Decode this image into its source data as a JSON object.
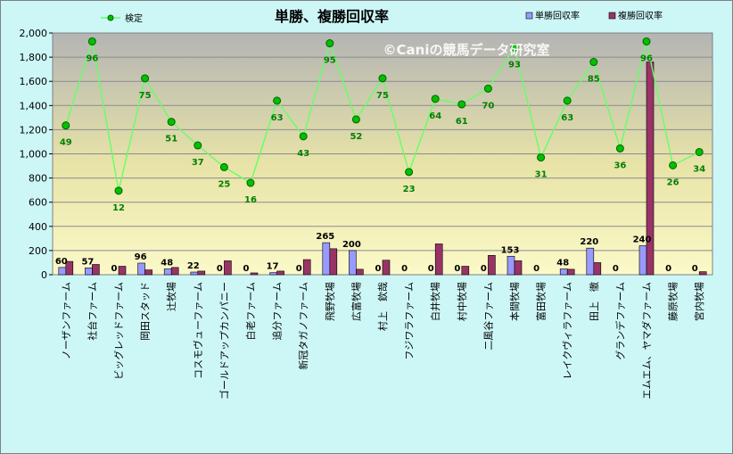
{
  "chart_data": {
    "type": "bar",
    "title": "単勝、複勝回収率",
    "watermark": "©Caniの競馬データ研究室",
    "ylim": [
      0,
      2000
    ],
    "yticks": [
      "0",
      "200",
      "400",
      "600",
      "800",
      "1,000",
      "1,200",
      "1,400",
      "1,600",
      "1,800",
      "2,000"
    ],
    "grid": true,
    "legend": "top",
    "categories": [
      "ノーザンファーム",
      "社台ファーム",
      "ビッグレッドファーム",
      "岡田スタッド",
      "辻牧場",
      "コスモヴューファーム",
      "ゴールドアップカンパニー",
      "白老ファーム",
      "追分ファーム",
      "新冠タガノファーム",
      "飛野牧場",
      "広富牧場",
      "村上　欽哉",
      "フジワラファーム",
      "白井牧場",
      "村中牧場",
      "二風谷ファーム",
      "本間牧場",
      "富田牧場",
      "レイクヴィラファーム",
      "田上　徹",
      "グランデファーム",
      "エムエム、ヤマダファーム",
      "藤原牧場",
      "宮内牧場"
    ],
    "series": [
      {
        "name": "単勝回収率",
        "kind": "bar",
        "color": "#9999ff",
        "values": [
          60,
          57,
          0,
          96,
          48,
          22,
          0,
          0,
          17,
          0,
          265,
          200,
          0,
          0,
          0,
          0,
          0,
          153,
          0,
          48,
          220,
          0,
          240,
          0,
          0
        ],
        "labels": [
          "60",
          "57",
          "0",
          "96",
          "48",
          "22",
          "0",
          "0",
          "17",
          "0",
          "265",
          "200",
          "0",
          "0",
          "0",
          "0",
          "0",
          "153",
          "0",
          "48",
          "220",
          "0",
          "240",
          "0",
          "0"
        ]
      },
      {
        "name": "複勝回収率",
        "kind": "bar",
        "color": "#993366",
        "values": [
          110,
          85,
          70,
          40,
          60,
          30,
          115,
          15,
          30,
          125,
          215,
          45,
          120,
          0,
          255,
          70,
          160,
          115,
          0,
          45,
          100,
          0,
          1760,
          0,
          25
        ]
      },
      {
        "name": "検定",
        "kind": "line",
        "color": "#00c000",
        "values": [
          1235,
          1930,
          695,
          1625,
          1265,
          1070,
          890,
          760,
          1440,
          1145,
          1915,
          1285,
          1625,
          850,
          1455,
          1410,
          1540,
          1880,
          970,
          1440,
          1760,
          1045,
          1930,
          905,
          1015
        ],
        "labels": [
          "49",
          "96",
          "12",
          "75",
          "51",
          "37",
          "25",
          "16",
          "63",
          "43",
          "95",
          "52",
          "75",
          "23",
          "64",
          "61",
          "70",
          "93",
          "31",
          "63",
          "85",
          "36",
          "96",
          "26",
          "34"
        ]
      }
    ]
  }
}
